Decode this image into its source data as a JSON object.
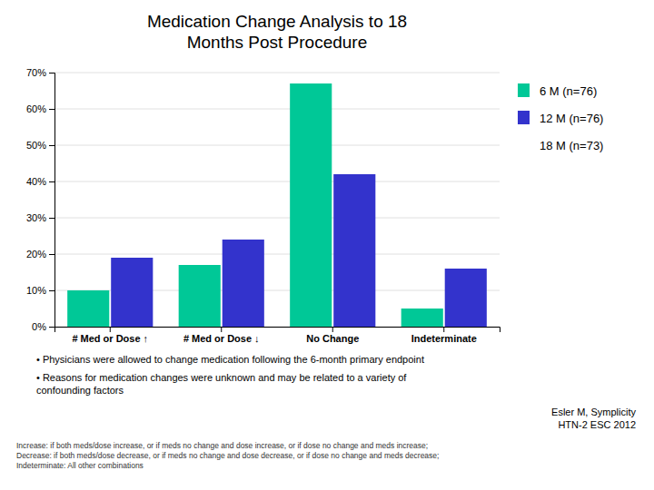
{
  "chart_data": {
    "type": "bar",
    "title": "Medication Change Analysis to 18\nMonths Post Procedure",
    "categories": [
      "# Med or Dose ↑",
      "# Med or Dose ↓",
      "No Change",
      "Indeterminate"
    ],
    "series": [
      {
        "name": "6 M (n=76)",
        "values": [
          10,
          17,
          67,
          5
        ],
        "color": "#00C897"
      },
      {
        "name": "12 M (n=76)",
        "values": [
          19,
          24,
          42,
          16
        ],
        "color": "#3333CC"
      },
      {
        "name": "18 M (n=73)",
        "values": [
          null,
          null,
          null,
          null
        ]
      }
    ],
    "ylim": [
      0,
      70
    ],
    "yticks": [
      {
        "value": 0,
        "label": "0%"
      },
      {
        "value": 10,
        "label": "10%"
      },
      {
        "value": 20,
        "label": "20%"
      },
      {
        "value": 30,
        "label": "30%"
      },
      {
        "value": 40,
        "label": "40%"
      },
      {
        "value": 50,
        "label": "50%"
      },
      {
        "value": 60,
        "label": "60%"
      },
      {
        "value": 70,
        "label": "70%"
      }
    ],
    "grid": true,
    "legend": "right",
    "annotations": [
      "• Physicians were allowed to change medication following the 6-month primary endpoint",
      "• Reasons for medication changes were unknown and may be related to a variety of\nconfounding factors",
      "Esler M, Symplicity\nHTN-2 ESC 2012",
      "Increase: if both meds/dose increase, or if meds no change and dose increase, or if dose no change and meds increase;\nDecrease: if both meds/dose decrease, or if meds no change and dose decrease, or if dose no change and meds decrease;\nIndeterminate: All other combinations"
    ]
  }
}
